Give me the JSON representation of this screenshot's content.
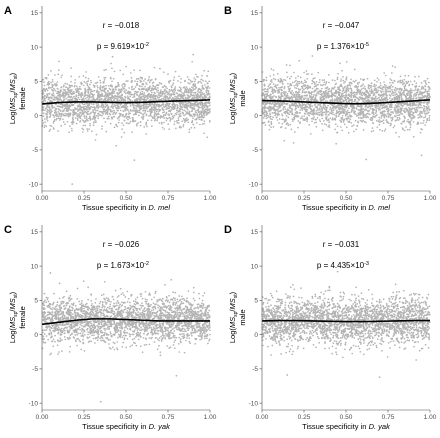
{
  "colors": {
    "points": "#b3b3b3",
    "trend": "#000000",
    "axis": "#4d4d4d",
    "text": "#000000"
  },
  "y_label": {
    "prefix": "Log(",
    "ms": "MS",
    "sub_sp": "sp",
    "div": "/",
    "sub_st": "st",
    "suffix": ")"
  },
  "chart_data": [
    {
      "panel": "A",
      "type": "scatter",
      "sex": "female",
      "xlabel_prefix": "Tissue specificity in ",
      "xlabel_species": "D. mel",
      "xlim": [
        0,
        1
      ],
      "ylim": [
        -11,
        16
      ],
      "x_ticks": [
        "0.00",
        "0.25",
        "0.50",
        "0.75",
        "1.00"
      ],
      "y_ticks": [
        "-10",
        "-5",
        "0",
        "5",
        "10",
        "15"
      ],
      "grid": false,
      "r_label": "r",
      "r_value": "−0.018",
      "p_label": "p",
      "p_mantissa": "9.619",
      "p_exponent": "-2",
      "p_times": "×10",
      "trend": {
        "x": [
          0,
          0.1,
          0.2,
          0.3,
          0.4,
          0.5,
          0.6,
          0.7,
          0.8,
          0.9,
          1.0
        ],
        "y": [
          1.7,
          1.9,
          2.0,
          2.0,
          1.95,
          1.9,
          1.95,
          2.05,
          2.15,
          2.2,
          2.3
        ]
      },
      "point_cloud": {
        "n": 2600,
        "x_range": [
          0,
          1
        ],
        "y_center": 2.0,
        "y_sd": 1.7,
        "y_min": -5.5,
        "y_max": 8.5,
        "outliers": [
          [
            0.18,
            -10.0
          ],
          [
            0.55,
            -6.5
          ],
          [
            0.9,
            8.9
          ],
          [
            0.42,
            8.6
          ]
        ]
      }
    },
    {
      "panel": "B",
      "type": "scatter",
      "sex": "male",
      "xlabel_prefix": "Tissue specificity in ",
      "xlabel_species": "D. mel",
      "xlim": [
        0,
        1
      ],
      "ylim": [
        -11,
        16
      ],
      "x_ticks": [
        "0.00",
        "0.25",
        "0.50",
        "0.75",
        "1.00"
      ],
      "y_ticks": [
        "-10",
        "-5",
        "0",
        "5",
        "10",
        "15"
      ],
      "grid": false,
      "r_label": "r",
      "r_value": "−0.047",
      "p_label": "p",
      "p_mantissa": "1.376",
      "p_exponent": "-5",
      "p_times": "×10",
      "trend": {
        "x": [
          0,
          0.1,
          0.2,
          0.3,
          0.4,
          0.5,
          0.6,
          0.7,
          0.8,
          0.9,
          1.0
        ],
        "y": [
          2.2,
          2.15,
          2.05,
          1.95,
          1.85,
          1.75,
          1.75,
          1.85,
          2.0,
          2.15,
          2.3
        ]
      },
      "point_cloud": {
        "n": 2600,
        "x_range": [
          0,
          1
        ],
        "y_center": 2.0,
        "y_sd": 1.7,
        "y_min": -5.5,
        "y_max": 8.5,
        "outliers": [
          [
            0.62,
            -6.4
          ],
          [
            0.3,
            8.7
          ],
          [
            0.95,
            -5.8
          ]
        ]
      }
    },
    {
      "panel": "C",
      "type": "scatter",
      "sex": "female",
      "xlabel_prefix": "Tissue specificity in ",
      "xlabel_species": "D. yak",
      "xlim": [
        0,
        1
      ],
      "ylim": [
        -11,
        16
      ],
      "x_ticks": [
        "0.00",
        "0.25",
        "0.50",
        "0.75",
        "1.00"
      ],
      "y_ticks": [
        "-10",
        "-5",
        "0",
        "5",
        "10",
        "15"
      ],
      "grid": false,
      "r_label": "r",
      "r_value": "−0.026",
      "p_label": "p",
      "p_mantissa": "1.673",
      "p_exponent": "-2",
      "p_times": "×10",
      "trend": {
        "x": [
          0,
          0.1,
          0.2,
          0.3,
          0.4,
          0.5,
          0.6,
          0.7,
          0.8,
          0.9,
          1.0
        ],
        "y": [
          1.5,
          1.8,
          2.1,
          2.3,
          2.3,
          2.2,
          2.1,
          2.0,
          2.0,
          2.0,
          2.0
        ]
      },
      "point_cloud": {
        "n": 2600,
        "x_range": [
          0,
          1
        ],
        "y_center": 2.1,
        "y_sd": 1.7,
        "y_min": -5.5,
        "y_max": 8.5,
        "outliers": [
          [
            0.35,
            -9.8
          ],
          [
            0.05,
            9.0
          ],
          [
            0.8,
            -6.0
          ]
        ]
      }
    },
    {
      "panel": "D",
      "type": "scatter",
      "sex": "male",
      "xlabel_prefix": "Tissue specificity in ",
      "xlabel_species": "D. yak",
      "xlim": [
        0,
        1
      ],
      "ylim": [
        -11,
        16
      ],
      "x_ticks": [
        "0.00",
        "0.25",
        "0.50",
        "0.75",
        "1.00"
      ],
      "y_ticks": [
        "-10",
        "-5",
        "0",
        "5",
        "10",
        "15"
      ],
      "grid": false,
      "r_label": "r",
      "r_value": "−0.031",
      "p_label": "p",
      "p_mantissa": "4.435",
      "p_exponent": "-3",
      "p_times": "×10",
      "trend": {
        "x": [
          0,
          0.1,
          0.2,
          0.3,
          0.4,
          0.5,
          0.6,
          0.7,
          0.8,
          0.9,
          1.0
        ],
        "y": [
          2.0,
          2.05,
          2.05,
          2.0,
          1.95,
          1.9,
          1.9,
          1.95,
          2.0,
          2.05,
          2.05
        ]
      },
      "point_cloud": {
        "n": 2600,
        "x_range": [
          0,
          1
        ],
        "y_center": 2.0,
        "y_sd": 1.7,
        "y_min": -5.5,
        "y_max": 8.5,
        "outliers": [
          [
            0.45,
            9.2
          ],
          [
            0.7,
            -6.2
          ],
          [
            0.15,
            -5.9
          ]
        ]
      }
    }
  ]
}
